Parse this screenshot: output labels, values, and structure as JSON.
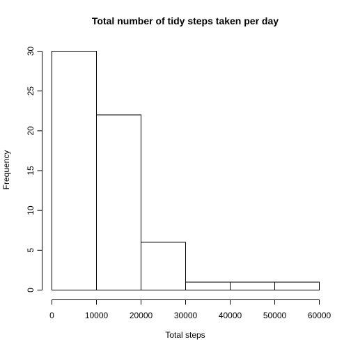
{
  "chart_data": {
    "type": "bar",
    "title": "Total number of tidy steps taken per day",
    "xlabel": "Total steps",
    "ylabel": "Frequency",
    "bins": [
      {
        "start": 0,
        "end": 10000,
        "count": 30
      },
      {
        "start": 10000,
        "end": 20000,
        "count": 22
      },
      {
        "start": 20000,
        "end": 30000,
        "count": 6
      },
      {
        "start": 30000,
        "end": 40000,
        "count": 1
      },
      {
        "start": 40000,
        "end": 50000,
        "count": 1
      },
      {
        "start": 50000,
        "end": 60000,
        "count": 1
      }
    ],
    "xlim": [
      0,
      60000
    ],
    "ylim": [
      0,
      30
    ],
    "xticks": [
      0,
      10000,
      20000,
      30000,
      40000,
      50000,
      60000
    ],
    "yticks": [
      0,
      5,
      10,
      15,
      20,
      25,
      30
    ],
    "grid": false,
    "legend": "none"
  }
}
